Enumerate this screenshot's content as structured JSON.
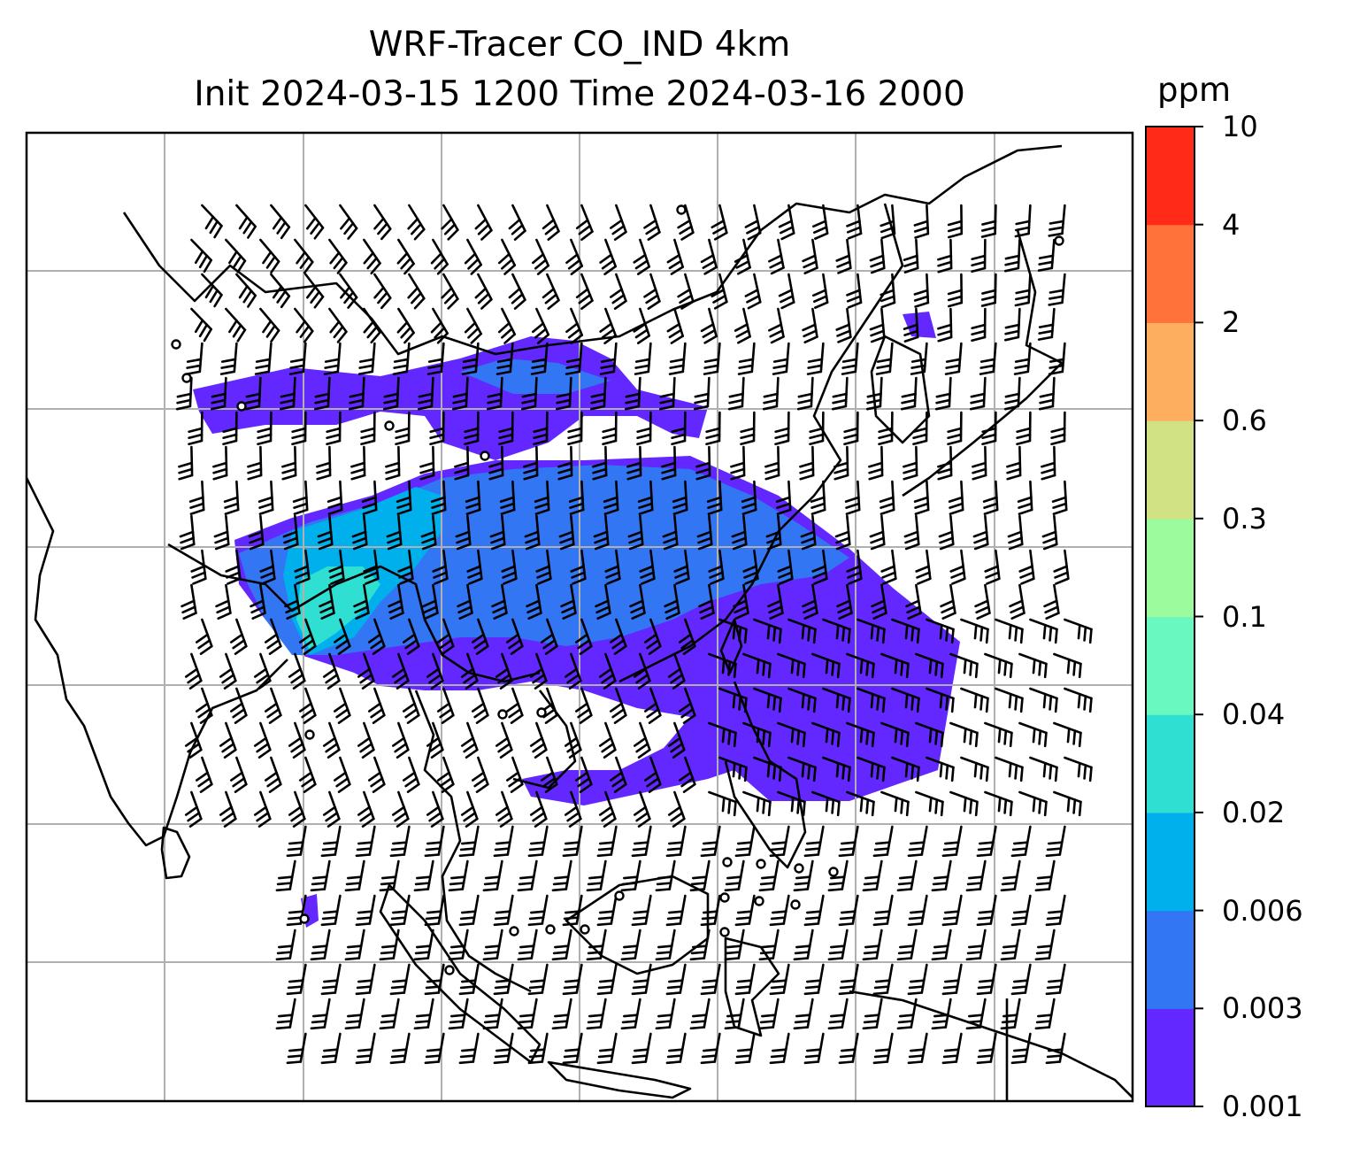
{
  "title": {
    "line1": "WRF-Tracer CO_IND 4km",
    "line2": "Init 2024-03-15 1200 Time 2024-03-16 2000"
  },
  "colorbar": {
    "unit": "ppm",
    "tick_labels": [
      "0.001",
      "0.003",
      "0.006",
      "0.02",
      "0.04",
      "0.1",
      "0.3",
      "0.6",
      "2",
      "4",
      "10"
    ],
    "colors": [
      "#6228ff",
      "#3276f4",
      "#00b0ec",
      "#2edfd2",
      "#68f8c0",
      "#9cfb9c",
      "#d1e285",
      "#fdaf5f",
      "#ff733b",
      "#ff2a18"
    ]
  },
  "map_style": {
    "gridline_color": "#b0b0b0",
    "coastline_color": "#000000",
    "barb_color": "#000000"
  }
}
